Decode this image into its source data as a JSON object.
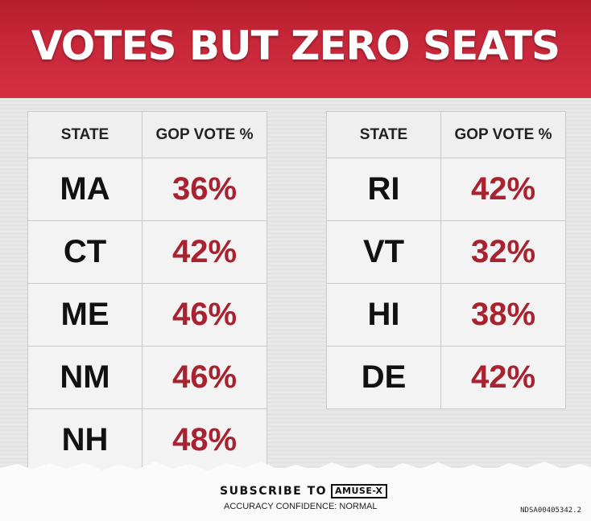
{
  "title": "VOTES BUT ZERO SEATS",
  "tables": [
    {
      "header_state": "STATE",
      "header_vote": "GOP VOTE %",
      "rows": [
        {
          "state": "MA",
          "vote": "36%"
        },
        {
          "state": "CT",
          "vote": "42%"
        },
        {
          "state": "ME",
          "vote": "46%"
        },
        {
          "state": "NM",
          "vote": "46%"
        },
        {
          "state": "NH",
          "vote": "48%"
        }
      ]
    },
    {
      "header_state": "STATE",
      "header_vote": "GOP VOTE %",
      "rows": [
        {
          "state": "RI",
          "vote": "42%"
        },
        {
          "state": "VT",
          "vote": "32%"
        },
        {
          "state": "HI",
          "vote": "38%"
        },
        {
          "state": "DE",
          "vote": "42%"
        }
      ]
    }
  ],
  "footer": {
    "subscribe": "SUBSCRIBE TO",
    "brand": "AMUSE-X",
    "confidence": "ACCURACY CONFIDENCE: NORMAL",
    "code": "NDSA00405342.2"
  },
  "colors": {
    "banner": "#c8283a",
    "vote_text": "#a8222f",
    "state_text": "#111111"
  }
}
